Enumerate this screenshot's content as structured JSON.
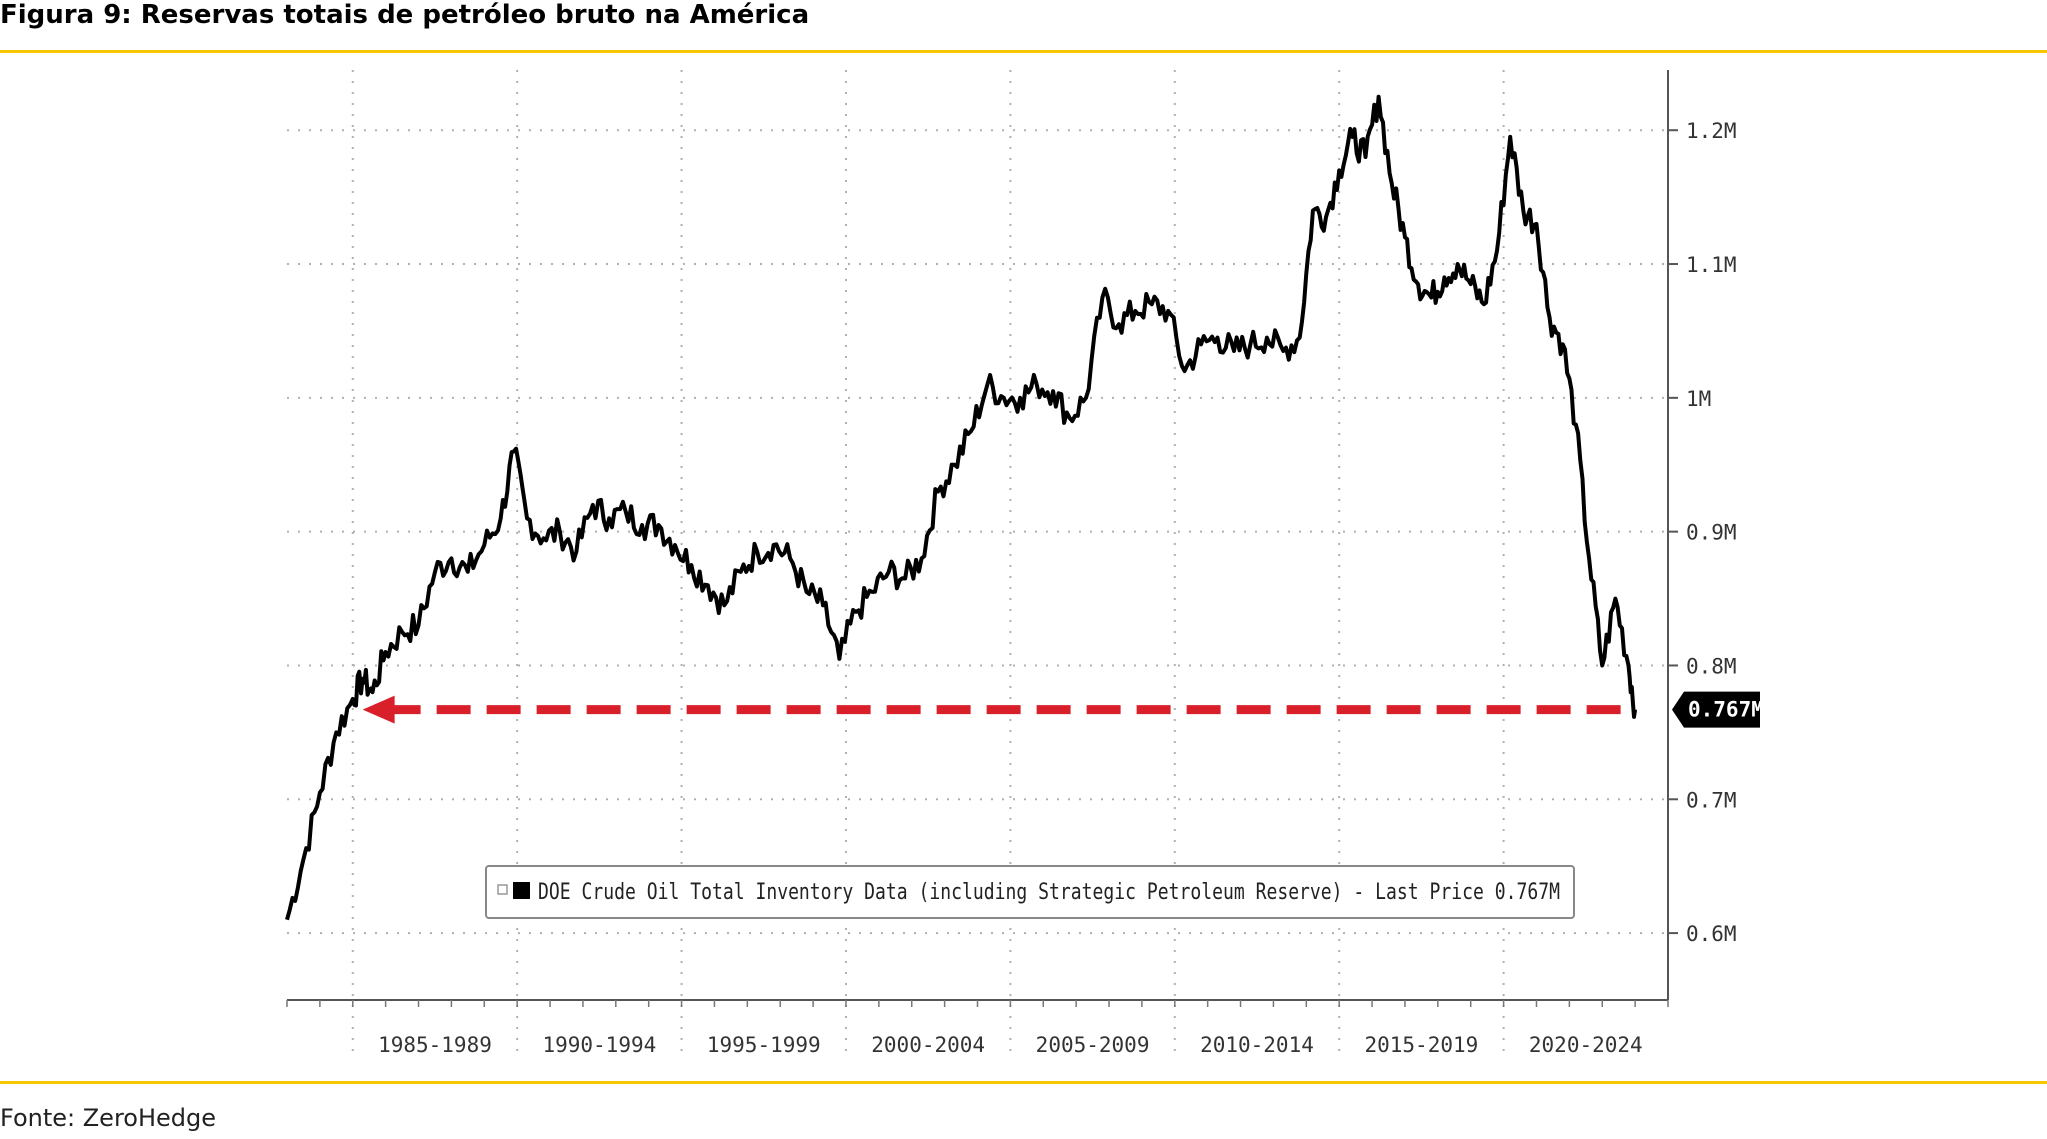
{
  "figure": {
    "title": "Figura 9: Reservas totais de petróleo bruto na América",
    "source": "Fonte: ZeroHedge"
  },
  "colors": {
    "accent_rule": "#f7c600",
    "series_line": "#000000",
    "reference_arrow": "#d9202a",
    "grid": "#b0b0b0"
  },
  "chart_data": {
    "type": "line",
    "title": "",
    "xlabel": "",
    "ylabel": "",
    "x_tick_labels": [
      "1985-1989",
      "1990-1994",
      "1995-1999",
      "2000-2004",
      "2005-2009",
      "2010-2014",
      "2015-2019",
      "2020-2024"
    ],
    "xlim": [
      1983,
      2025
    ],
    "ylim": [
      0.55,
      1.245
    ],
    "y_tick_labels": [
      "0.6M",
      "0.7M",
      "0.8M",
      "0.9M",
      "1M",
      "1.1M",
      "1.2M"
    ],
    "y_ticks": [
      0.6,
      0.7,
      0.8,
      0.9,
      1.0,
      1.1,
      1.2
    ],
    "y_axis_side": "right",
    "grid": true,
    "legend": {
      "placement": "bottom-center",
      "entry": "DOE Crude Oil Total Inventory Data (including Strategic Petroleum Reserve) - Last Price 0.767M"
    },
    "last_value_label": "0.767M",
    "reference_line": {
      "y": 0.767,
      "style": "dashed",
      "direction": "arrow pointing to 1985"
    },
    "series": [
      {
        "name": "DOE Crude Oil Total Inventory Data (including Strategic Petroleum Reserve)",
        "points": [
          [
            1983.0,
            0.61
          ],
          [
            1983.5,
            0.655
          ],
          [
            1984.0,
            0.705
          ],
          [
            1984.5,
            0.75
          ],
          [
            1985.0,
            0.775
          ],
          [
            1985.3,
            0.79
          ],
          [
            1985.6,
            0.78
          ],
          [
            1986.0,
            0.81
          ],
          [
            1986.5,
            0.825
          ],
          [
            1987.0,
            0.83
          ],
          [
            1987.5,
            0.87
          ],
          [
            1988.0,
            0.88
          ],
          [
            1988.5,
            0.87
          ],
          [
            1989.0,
            0.89
          ],
          [
            1989.5,
            0.91
          ],
          [
            1989.9,
            0.96
          ],
          [
            1990.3,
            0.91
          ],
          [
            1990.8,
            0.895
          ],
          [
            1991.3,
            0.9
          ],
          [
            1991.8,
            0.885
          ],
          [
            1992.3,
            0.92
          ],
          [
            1992.8,
            0.91
          ],
          [
            1993.3,
            0.915
          ],
          [
            1993.8,
            0.905
          ],
          [
            1994.3,
            0.905
          ],
          [
            1994.8,
            0.89
          ],
          [
            1995.3,
            0.875
          ],
          [
            1995.8,
            0.86
          ],
          [
            1996.3,
            0.845
          ],
          [
            1996.8,
            0.87
          ],
          [
            1997.3,
            0.885
          ],
          [
            1997.8,
            0.89
          ],
          [
            1998.3,
            0.88
          ],
          [
            1998.8,
            0.855
          ],
          [
            1999.3,
            0.845
          ],
          [
            1999.8,
            0.805
          ],
          [
            2000.3,
            0.84
          ],
          [
            2000.8,
            0.855
          ],
          [
            2001.3,
            0.87
          ],
          [
            2001.8,
            0.865
          ],
          [
            2002.3,
            0.88
          ],
          [
            2002.8,
            0.93
          ],
          [
            2003.3,
            0.95
          ],
          [
            2003.8,
            0.975
          ],
          [
            2004.3,
            1.01
          ],
          [
            2004.8,
            1.0
          ],
          [
            2005.3,
            1.0
          ],
          [
            2005.8,
            1.01
          ],
          [
            2006.3,
            1.005
          ],
          [
            2006.8,
            0.985
          ],
          [
            2007.3,
            1.0
          ],
          [
            2007.8,
            1.075
          ],
          [
            2008.3,
            1.055
          ],
          [
            2008.8,
            1.065
          ],
          [
            2009.3,
            1.07
          ],
          [
            2009.8,
            1.065
          ],
          [
            2010.3,
            1.02
          ],
          [
            2010.8,
            1.04
          ],
          [
            2011.3,
            1.045
          ],
          [
            2011.8,
            1.035
          ],
          [
            2012.3,
            1.04
          ],
          [
            2012.8,
            1.045
          ],
          [
            2013.3,
            1.035
          ],
          [
            2013.8,
            1.045
          ],
          [
            2014.2,
            1.14
          ],
          [
            2014.6,
            1.135
          ],
          [
            2015.0,
            1.17
          ],
          [
            2015.4,
            1.195
          ],
          [
            2015.8,
            1.18
          ],
          [
            2016.2,
            1.225
          ],
          [
            2016.6,
            1.16
          ],
          [
            2017.0,
            1.12
          ],
          [
            2017.4,
            1.085
          ],
          [
            2017.8,
            1.075
          ],
          [
            2018.2,
            1.09
          ],
          [
            2018.6,
            1.1
          ],
          [
            2019.0,
            1.085
          ],
          [
            2019.4,
            1.07
          ],
          [
            2019.8,
            1.11
          ],
          [
            2020.2,
            1.195
          ],
          [
            2020.6,
            1.14
          ],
          [
            2021.0,
            1.13
          ],
          [
            2021.4,
            1.06
          ],
          [
            2021.8,
            1.04
          ],
          [
            2022.2,
            0.98
          ],
          [
            2022.6,
            0.88
          ],
          [
            2023.0,
            0.8
          ],
          [
            2023.4,
            0.85
          ],
          [
            2023.8,
            0.8
          ],
          [
            2024.0,
            0.767
          ]
        ]
      }
    ]
  }
}
